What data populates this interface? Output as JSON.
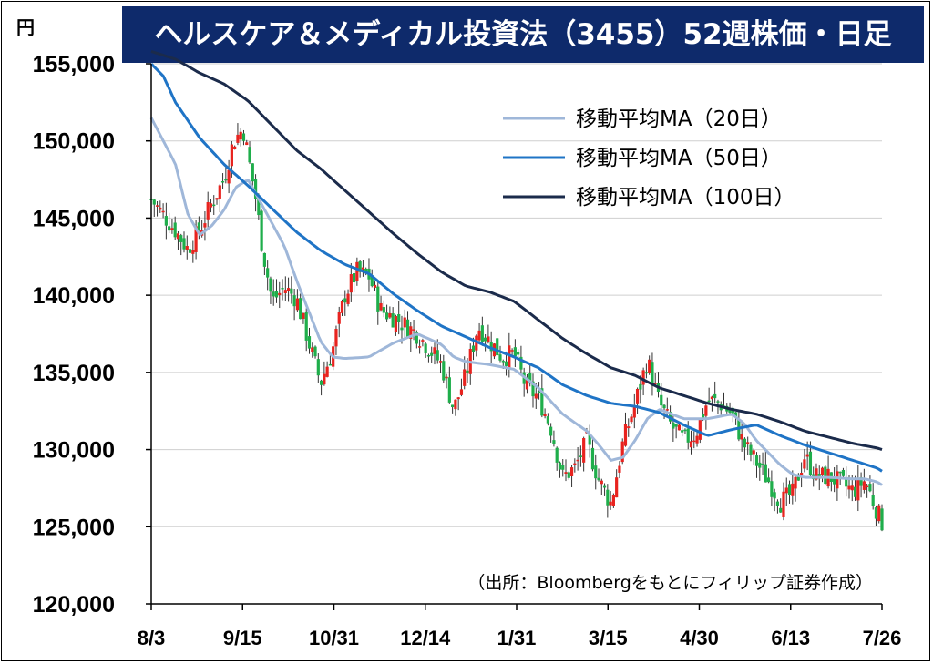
{
  "chart_data": {
    "type": "candlestick",
    "title": "ヘルスケア＆メディカル投資法（3455）52週株価・日足",
    "unit": "円",
    "source": "（出所：Bloombergをもとにフィリップ証券作成）",
    "ylim": [
      120000,
      155000
    ],
    "y_ticks": [
      "155,000",
      "150,000",
      "145,000",
      "140,000",
      "135,000",
      "130,000",
      "125,000",
      "120,000"
    ],
    "y_tick_values": [
      155000,
      150000,
      145000,
      140000,
      135000,
      130000,
      125000,
      120000
    ],
    "x_ticks": [
      "8/3",
      "9/15",
      "10/31",
      "12/14",
      "1/31",
      "3/15",
      "4/30",
      "6/13",
      "7/26"
    ],
    "grid": true,
    "legend_position": "top-right",
    "colors": {
      "up": "#e8231f",
      "down": "#1fae4b",
      "ma20": "#9fb7d9",
      "ma50": "#1f74c6",
      "ma100": "#1b2b4b",
      "title_bg": "#0e2a6b"
    },
    "legend": [
      {
        "name": "移動平均MA（20日）",
        "key": "ma20"
      },
      {
        "name": "移動平均MA（50日）",
        "key": "ma50"
      },
      {
        "name": "移動平均MA（100日）",
        "key": "ma100"
      }
    ],
    "close_anchors": [
      [
        0,
        146200
      ],
      [
        1,
        144200
      ],
      [
        1.5,
        143000
      ],
      [
        2,
        144200
      ],
      [
        2.5,
        146000
      ],
      [
        3,
        147500
      ],
      [
        3.4,
        150000
      ],
      [
        3.8,
        150800
      ],
      [
        4,
        149000
      ],
      [
        4.3,
        146500
      ],
      [
        4.6,
        143000
      ],
      [
        5,
        139600
      ],
      [
        5.5,
        140500
      ],
      [
        6,
        139800
      ],
      [
        6.5,
        137000
      ],
      [
        7,
        134300
      ],
      [
        7.5,
        136500
      ],
      [
        8,
        140000
      ],
      [
        8.5,
        141500
      ],
      [
        9,
        141200
      ],
      [
        9.5,
        139000
      ],
      [
        10,
        138600
      ],
      [
        11,
        137500
      ],
      [
        12,
        135500
      ],
      [
        12.5,
        132600
      ],
      [
        13,
        134800
      ],
      [
        13.5,
        138000
      ],
      [
        14,
        137000
      ],
      [
        14.5,
        136000
      ],
      [
        15,
        136200
      ],
      [
        15.5,
        134000
      ],
      [
        16,
        133400
      ],
      [
        16.5,
        131500
      ],
      [
        17,
        128200
      ],
      [
        17.5,
        128800
      ],
      [
        18,
        130500
      ],
      [
        18.5,
        128000
      ],
      [
        19,
        126500
      ],
      [
        19.5,
        130500
      ],
      [
        20,
        133000
      ],
      [
        20.5,
        135800
      ],
      [
        21,
        133000
      ],
      [
        21.5,
        131500
      ],
      [
        22,
        130600
      ],
      [
        22.5,
        131000
      ],
      [
        23,
        133200
      ],
      [
        23.5,
        133000
      ],
      [
        24,
        132300
      ],
      [
        24.5,
        130300
      ],
      [
        25,
        129200
      ],
      [
        25.5,
        128000
      ],
      [
        26,
        126600
      ],
      [
        26.5,
        127100
      ],
      [
        27,
        129600
      ],
      [
        27.5,
        128200
      ],
      [
        28,
        128300
      ],
      [
        28.5,
        127800
      ],
      [
        29,
        127300
      ],
      [
        29.5,
        128000
      ],
      [
        30,
        126000
      ],
      [
        30.2,
        125300
      ]
    ],
    "ma20_anchors": [
      [
        0,
        151500
      ],
      [
        1,
        148500
      ],
      [
        1.5,
        145300
      ],
      [
        2,
        143900
      ],
      [
        2.5,
        144500
      ],
      [
        3,
        145500
      ],
      [
        3.5,
        147000
      ],
      [
        4,
        147500
      ],
      [
        4.7,
        145500
      ],
      [
        5.5,
        143200
      ],
      [
        6,
        141000
      ],
      [
        6.5,
        139000
      ],
      [
        7,
        137000
      ],
      [
        7.5,
        136000
      ],
      [
        8,
        135900
      ],
      [
        9,
        136000
      ],
      [
        10,
        136900
      ],
      [
        11,
        137500
      ],
      [
        12,
        136800
      ],
      [
        12.5,
        136000
      ],
      [
        13,
        135700
      ],
      [
        14,
        135500
      ],
      [
        15,
        135200
      ],
      [
        16,
        134000
      ],
      [
        17,
        132300
      ],
      [
        18,
        131200
      ],
      [
        18.5,
        130300
      ],
      [
        19,
        129300
      ],
      [
        19.5,
        129500
      ],
      [
        20,
        130600
      ],
      [
        20.5,
        132000
      ],
      [
        21,
        132600
      ],
      [
        22,
        132000
      ],
      [
        23,
        132000
      ],
      [
        24,
        132300
      ],
      [
        24.5,
        131700
      ],
      [
        25,
        130600
      ],
      [
        26,
        129000
      ],
      [
        26.5,
        128400
      ],
      [
        27,
        128200
      ],
      [
        28,
        128200
      ],
      [
        29,
        128100
      ],
      [
        29.5,
        128100
      ],
      [
        30,
        127900
      ],
      [
        30.2,
        127700
      ]
    ],
    "ma50_anchors": [
      [
        0,
        155000
      ],
      [
        0.5,
        154200
      ],
      [
        1,
        152500
      ],
      [
        2,
        150200
      ],
      [
        3,
        148500
      ],
      [
        4,
        147100
      ],
      [
        5,
        145600
      ],
      [
        6,
        144100
      ],
      [
        7,
        142900
      ],
      [
        8,
        142000
      ],
      [
        9,
        141400
      ],
      [
        10,
        140100
      ],
      [
        11,
        139000
      ],
      [
        12,
        138000
      ],
      [
        13,
        137300
      ],
      [
        14,
        136600
      ],
      [
        15,
        136000
      ],
      [
        16,
        135300
      ],
      [
        17,
        134200
      ],
      [
        18,
        133500
      ],
      [
        19,
        133000
      ],
      [
        20,
        132800
      ],
      [
        21,
        132400
      ],
      [
        22,
        131600
      ],
      [
        23,
        130900
      ],
      [
        24,
        131300
      ],
      [
        25,
        131600
      ],
      [
        26,
        130900
      ],
      [
        27,
        130300
      ],
      [
        28,
        129800
      ],
      [
        29,
        129300
      ],
      [
        30,
        128800
      ],
      [
        30.2,
        128600
      ]
    ],
    "ma100_anchors": [
      [
        0,
        155800
      ],
      [
        1,
        155300
      ],
      [
        2,
        154400
      ],
      [
        3,
        153700
      ],
      [
        4,
        152600
      ],
      [
        5,
        151000
      ],
      [
        6,
        149400
      ],
      [
        7,
        148200
      ],
      [
        8,
        146800
      ],
      [
        9,
        145400
      ],
      [
        10,
        144000
      ],
      [
        11,
        142700
      ],
      [
        12,
        141500
      ],
      [
        13,
        140600
      ],
      [
        14,
        140200
      ],
      [
        15,
        139600
      ],
      [
        16,
        138400
      ],
      [
        17,
        137200
      ],
      [
        18,
        136200
      ],
      [
        19,
        135300
      ],
      [
        20,
        134800
      ],
      [
        21,
        134000
      ],
      [
        22,
        133500
      ],
      [
        23,
        133000
      ],
      [
        24,
        132600
      ],
      [
        25,
        132300
      ],
      [
        26,
        131800
      ],
      [
        27,
        131200
      ],
      [
        28,
        130800
      ],
      [
        29,
        130400
      ],
      [
        30,
        130100
      ],
      [
        30.2,
        130000
      ]
    ]
  }
}
